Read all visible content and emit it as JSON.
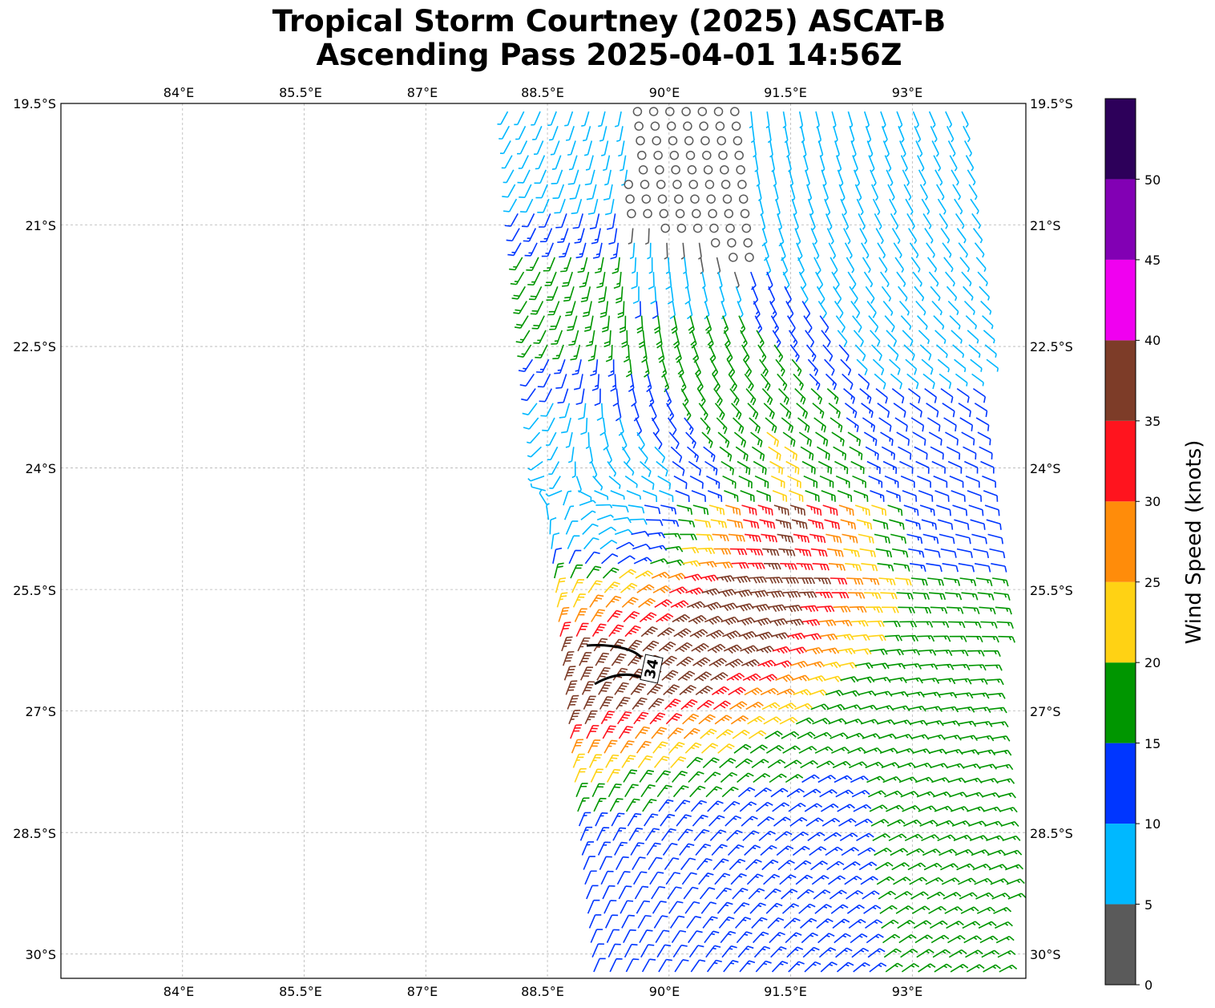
{
  "title": {
    "line1": "Tropical Storm Courtney (2025) ASCAT-B",
    "line2": "Ascending Pass 2025-04-01 14:56Z"
  },
  "map": {
    "lon_range": [
      82.5,
      94.4
    ],
    "lat_range": [
      -30.3,
      -19.5
    ],
    "lon_ticks": [
      84,
      85.5,
      87,
      88.5,
      90,
      91.5,
      93
    ],
    "lon_tick_labels": [
      "84°E",
      "85.5°E",
      "87°E",
      "88.5°E",
      "90°E",
      "91.5°E",
      "93°E"
    ],
    "lat_ticks": [
      -19.5,
      -21,
      -22.5,
      -24,
      -25.5,
      -27,
      -28.5,
      -30
    ],
    "lat_tick_labels": [
      "19.5°S",
      "21°S",
      "22.5°S",
      "24°S",
      "25.5°S",
      "27°S",
      "28.5°S",
      "30°S"
    ],
    "grid": true,
    "grid_color": "#b5b5b5",
    "contour_label": "34",
    "storm_center_approx": {
      "lon": 88.7,
      "lat": -24.3
    }
  },
  "colorbar": {
    "label": "Wind Speed (knots)",
    "ticks": [
      "0",
      "5",
      "10",
      "15",
      "20",
      "25",
      "30",
      "35",
      "40",
      "45",
      "50"
    ],
    "bins": [
      {
        "min": 0,
        "max": 5,
        "color": "#5a5a5a"
      },
      {
        "min": 5,
        "max": 10,
        "color": "#00b8ff"
      },
      {
        "min": 10,
        "max": 15,
        "color": "#0036ff"
      },
      {
        "min": 15,
        "max": 20,
        "color": "#009600"
      },
      {
        "min": 20,
        "max": 25,
        "color": "#ffd214"
      },
      {
        "min": 25,
        "max": 30,
        "color": "#ff8c0a"
      },
      {
        "min": 30,
        "max": 35,
        "color": "#ff141e"
      },
      {
        "min": 35,
        "max": 40,
        "color": "#7d3c28"
      },
      {
        "min": 40,
        "max": 45,
        "color": "#f000f0"
      },
      {
        "min": 45,
        "max": 50,
        "color": "#8200b4"
      },
      {
        "min": 50,
        "max": 55,
        "color": "#2d005a"
      }
    ]
  }
}
